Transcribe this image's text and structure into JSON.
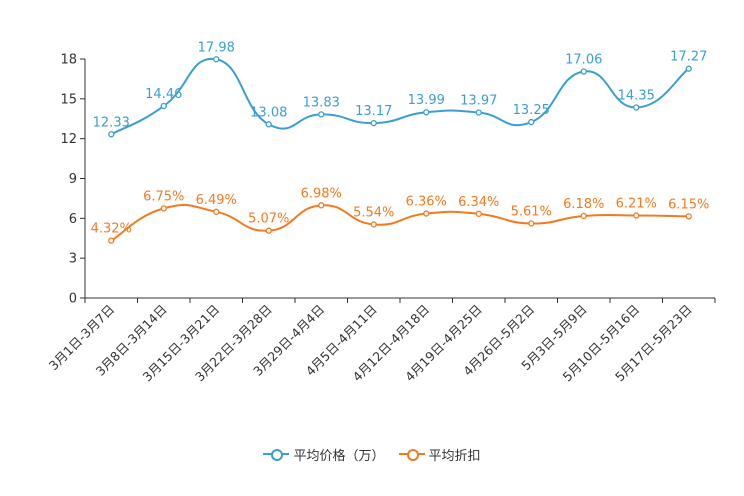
{
  "chart_data": {
    "type": "line",
    "title": "",
    "xlabel": "",
    "ylabel": "",
    "ylim": [
      0,
      18
    ],
    "yticks": [
      0,
      3,
      6,
      9,
      12,
      15,
      18
    ],
    "categories": [
      "3月1日-3月7日",
      "3月8日-3月14日",
      "3月15日-3月21日",
      "3月22日-3月28日",
      "3月29日-4月4日",
      "4月5日-4月11日",
      "4月12日-4月18日",
      "4月19日-4月25日",
      "4月26日-5月2日",
      "5月3日-5月9日",
      "5月10日-5月16日",
      "5月17日-5月23日"
    ],
    "series": [
      {
        "name": "平均价格（万）",
        "color": "#3a9fd0",
        "values": [
          12.33,
          14.46,
          17.98,
          13.08,
          13.83,
          13.17,
          13.99,
          13.97,
          13.25,
          17.06,
          14.35,
          17.27
        ],
        "labels": [
          "12.33",
          "14.46",
          "17.98",
          "13.08",
          "13.83",
          "13.17",
          "13.99",
          "13.97",
          "13.25",
          "17.06",
          "14.35",
          "17.27"
        ]
      },
      {
        "name": "平均折扣",
        "color": "#f47a20",
        "values": [
          4.32,
          6.75,
          6.49,
          5.07,
          6.98,
          5.54,
          6.36,
          6.34,
          5.61,
          6.18,
          6.21,
          6.15
        ],
        "labels": [
          "4.32%",
          "6.75%",
          "6.49%",
          "5.07%",
          "6.98%",
          "5.54%",
          "6.36%",
          "6.34%",
          "5.61%",
          "6.18%",
          "6.21%",
          "6.15%"
        ]
      }
    ],
    "legend_position": "bottom-center"
  }
}
